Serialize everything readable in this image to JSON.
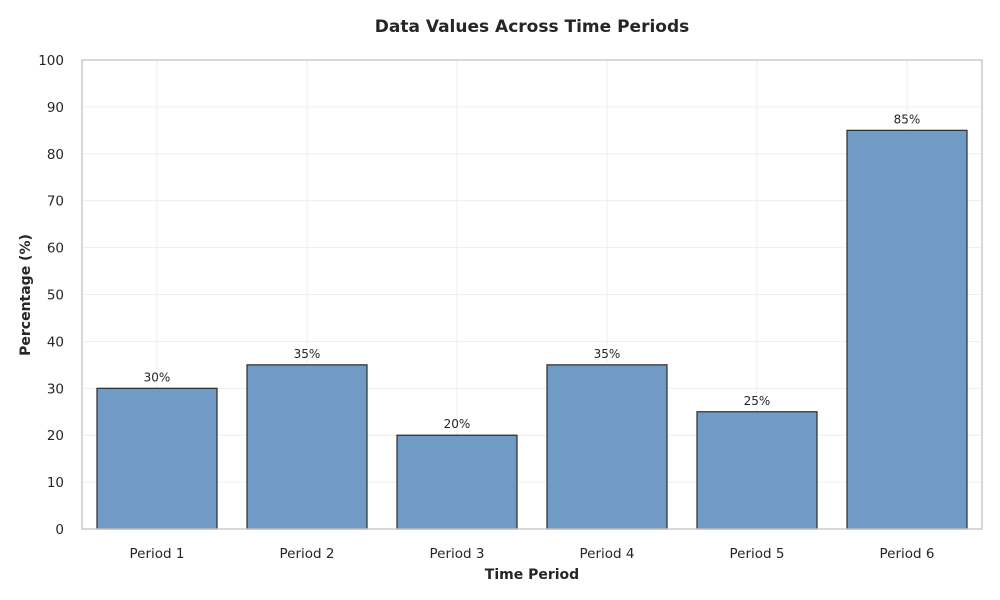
{
  "chart_data": {
    "type": "bar",
    "title": "Data Values Across Time Periods",
    "xlabel": "Time Period",
    "ylabel": "Percentage (%)",
    "categories": [
      "Period 1",
      "Period 2",
      "Period 3",
      "Period 4",
      "Period 5",
      "Period 6"
    ],
    "values": [
      30,
      35,
      20,
      35,
      25,
      85
    ],
    "data_labels": [
      "30%",
      "35%",
      "20%",
      "35%",
      "25%",
      "85%"
    ],
    "ylim": [
      0,
      100
    ],
    "yticks": [
      "0",
      "10",
      "20",
      "30",
      "40",
      "50",
      "60",
      "70",
      "80",
      "90",
      "100"
    ],
    "grid": true,
    "bar_color": "#6f9bc6",
    "bar_edge_color": "#2b2b2b"
  }
}
